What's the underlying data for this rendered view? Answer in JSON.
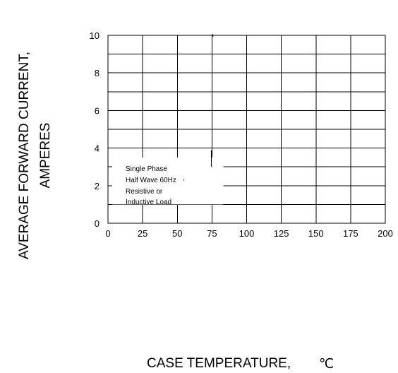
{
  "chart_data": {
    "type": "line",
    "title": "",
    "xlabel": "CASE  TEMPERATURE,",
    "xlabel_unit": "℃",
    "ylabel_line1": "AVERAGE FORWARD CURRENT,",
    "ylabel_line2": "AMPERES",
    "xlim": [
      0,
      200
    ],
    "ylim": [
      0,
      10
    ],
    "x_ticks": [
      0,
      25,
      50,
      75,
      100,
      125,
      150,
      175,
      200
    ],
    "x_tick_labels": [
      "0",
      "25",
      "50",
      "75",
      "100",
      "125",
      "150",
      "175",
      "200"
    ],
    "y_ticks": [
      0,
      2,
      4,
      6,
      8,
      10
    ],
    "y_tick_labels": [
      "0",
      "2",
      "4",
      "6",
      "8",
      "10"
    ],
    "y_minor_step": 1,
    "grid": true,
    "series": [],
    "annotation": {
      "lines": [
        "Single Phase",
        "Half Wave 60Hz",
        "Resistive or",
        "Inductive Load"
      ],
      "extra_mark": ","
    }
  }
}
